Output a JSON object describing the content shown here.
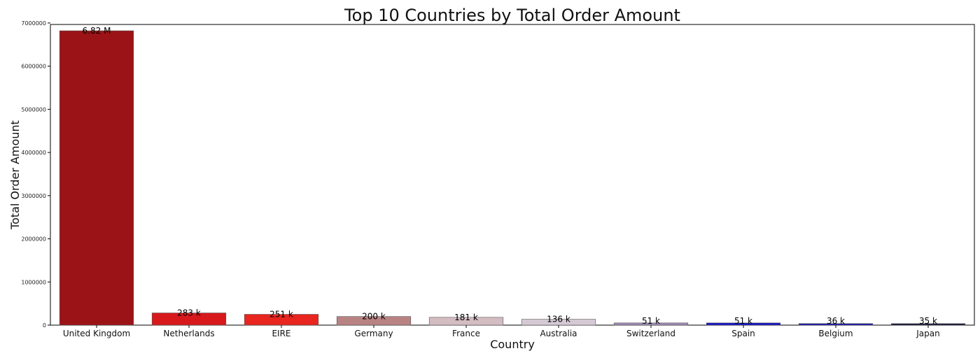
{
  "chart_data": {
    "type": "bar",
    "title": "Top 10 Countries by Total Order Amount",
    "xlabel": "Country",
    "ylabel": "Total Order Amount",
    "categories": [
      "United Kingdom",
      "Netherlands",
      "EIRE",
      "Germany",
      "France",
      "Australia",
      "Switzerland",
      "Spain",
      "Belgium",
      "Japan"
    ],
    "values": [
      6820000,
      283000,
      251000,
      200000,
      181000,
      136000,
      51000,
      51000,
      36000,
      35000
    ],
    "data_labels": [
      "6.82 M",
      "283 k",
      "251 k",
      "200 k",
      "181 k",
      "136 k",
      "51 k",
      "51 k",
      "36 k",
      "35 k"
    ],
    "colors": [
      "#9b1316",
      "#d7191c",
      "#e8251f",
      "#b98283",
      "#d4bcc3",
      "#d4c9d5",
      "#9e8cb6",
      "#1414c8",
      "#1717b0",
      "#16163a"
    ],
    "ylim": [
      0,
      7000000
    ],
    "yticks": [
      0,
      1000000,
      2000000,
      3000000,
      4000000,
      5000000,
      6000000,
      7000000
    ],
    "ytick_labels": [
      "0",
      "1000000",
      "2000000",
      "3000000",
      "4000000",
      "5000000",
      "6000000",
      "7000000"
    ],
    "grid": false,
    "legend": "none"
  }
}
